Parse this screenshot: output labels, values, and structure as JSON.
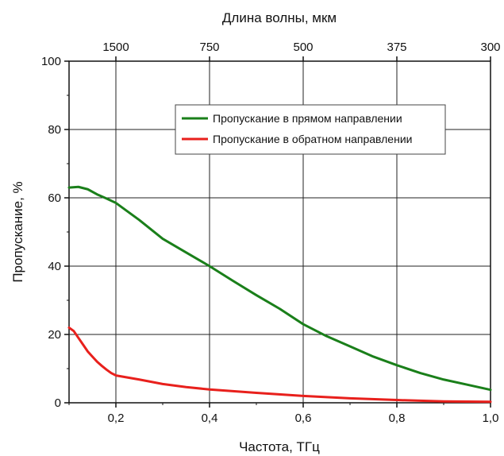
{
  "chart_data": {
    "type": "line",
    "xlabel": "Частота, ТГц",
    "ylabel": "Пропускание, %",
    "top_xlabel": "Длина волны, мкм",
    "xlim": [
      0.1,
      1.0
    ],
    "ylim": [
      0,
      100
    ],
    "grid": true,
    "legend_position": "top-right",
    "x_ticks": [
      {
        "value": 0.2,
        "label": "0,2"
      },
      {
        "value": 0.4,
        "label": "0,4"
      },
      {
        "value": 0.6,
        "label": "0,6"
      },
      {
        "value": 0.8,
        "label": "0,8"
      },
      {
        "value": 1.0,
        "label": "1,0"
      }
    ],
    "y_ticks": [
      {
        "value": 0,
        "label": "0"
      },
      {
        "value": 20,
        "label": "20"
      },
      {
        "value": 40,
        "label": "40"
      },
      {
        "value": 60,
        "label": "60"
      },
      {
        "value": 80,
        "label": "80"
      },
      {
        "value": 100,
        "label": "100"
      }
    ],
    "top_ticks": [
      {
        "value": 0.2,
        "label": "1500"
      },
      {
        "value": 0.4,
        "label": "750"
      },
      {
        "value": 0.6,
        "label": "500"
      },
      {
        "value": 0.8,
        "label": "375"
      },
      {
        "value": 1.0,
        "label": "300"
      }
    ],
    "series": [
      {
        "name": "Пропускание в прямом направлении",
        "color": "#1a7f1a",
        "x": [
          0.1,
          0.12,
          0.14,
          0.16,
          0.18,
          0.2,
          0.25,
          0.3,
          0.35,
          0.4,
          0.45,
          0.5,
          0.55,
          0.6,
          0.65,
          0.7,
          0.75,
          0.8,
          0.85,
          0.9,
          0.95,
          1.0
        ],
        "y": [
          63,
          63.2,
          62.5,
          61,
          59.8,
          58.5,
          53.5,
          48,
          44,
          40,
          35.7,
          31.5,
          27.5,
          23,
          19.5,
          16.5,
          13.5,
          11,
          8.7,
          6.8,
          5.3,
          3.8
        ]
      },
      {
        "name": "Пропускание в обратном направлении",
        "color": "#e8201c",
        "x": [
          0.1,
          0.11,
          0.12,
          0.13,
          0.14,
          0.15,
          0.16,
          0.17,
          0.18,
          0.19,
          0.2,
          0.25,
          0.3,
          0.35,
          0.4,
          0.5,
          0.6,
          0.7,
          0.8,
          0.9,
          1.0
        ],
        "y": [
          22,
          21,
          19,
          17,
          15,
          13.5,
          12,
          10.8,
          9.7,
          8.7,
          8,
          6.8,
          5.5,
          4.6,
          3.9,
          2.9,
          2,
          1.3,
          0.8,
          0.4,
          0.3
        ]
      }
    ]
  }
}
